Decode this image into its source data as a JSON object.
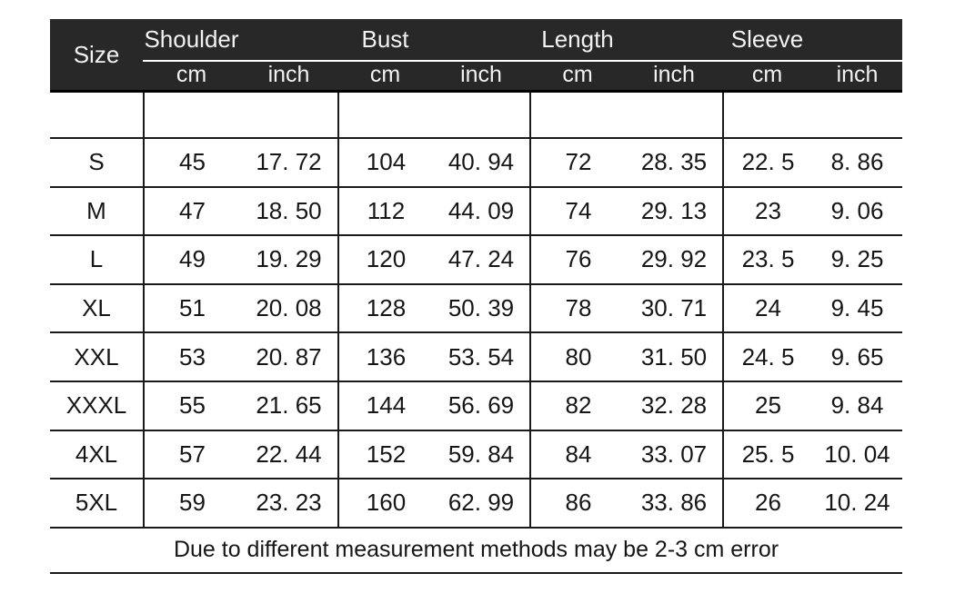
{
  "table": {
    "header": {
      "size_label": "Size",
      "groups": [
        {
          "label": "Shoulder",
          "units": [
            "cm",
            "inch"
          ]
        },
        {
          "label": "Bust",
          "units": [
            "cm",
            "inch"
          ]
        },
        {
          "label": "Length",
          "units": [
            "cm",
            "inch"
          ]
        },
        {
          "label": "Sleeve",
          "units": [
            "cm",
            "inch"
          ]
        }
      ],
      "colors": {
        "background": "#282828",
        "text": "#f2f2f2",
        "underline": "#ffffff"
      }
    },
    "rows": [
      {
        "size": "S",
        "values": [
          "45",
          "17. 72",
          "104",
          "40. 94",
          "72",
          "28. 35",
          "22. 5",
          "8. 86"
        ]
      },
      {
        "size": "M",
        "values": [
          "47",
          "18. 50",
          "112",
          "44. 09",
          "74",
          "29. 13",
          "23",
          "9. 06"
        ]
      },
      {
        "size": "L",
        "values": [
          "49",
          "19. 29",
          "120",
          "47. 24",
          "76",
          "29. 92",
          "23. 5",
          "9. 25"
        ]
      },
      {
        "size": "XL",
        "values": [
          "51",
          "20. 08",
          "128",
          "50. 39",
          "78",
          "30. 71",
          "24",
          "9. 45"
        ]
      },
      {
        "size": "XXL",
        "values": [
          "53",
          "20. 87",
          "136",
          "53. 54",
          "80",
          "31. 50",
          "24. 5",
          "9. 65"
        ]
      },
      {
        "size": "XXXL",
        "values": [
          "55",
          "21. 65",
          "144",
          "56. 69",
          "82",
          "32. 28",
          "25",
          "9. 84"
        ]
      },
      {
        "size": "4XL",
        "values": [
          "57",
          "22. 44",
          "152",
          "59. 84",
          "84",
          "33. 07",
          "25. 5",
          "10. 04"
        ]
      },
      {
        "size": "5XL",
        "values": [
          "59",
          "23. 23",
          "160",
          "62. 99",
          "86",
          "33. 86",
          "26",
          "10. 24"
        ]
      }
    ],
    "footer_note": "Due to different measurement methods may be 2-3 cm error",
    "line_color": "#1a1a1a"
  }
}
